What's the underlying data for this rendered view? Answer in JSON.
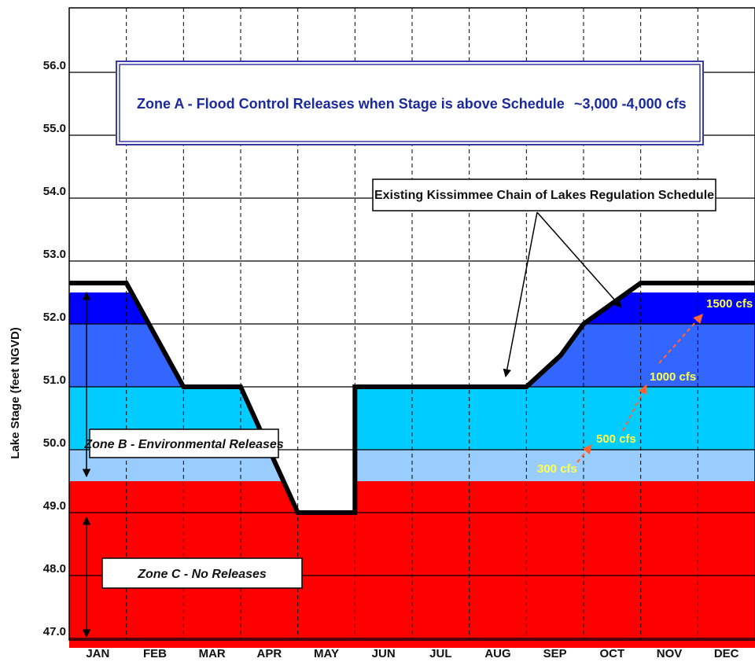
{
  "chart_data": {
    "type": "area",
    "ylabel": "Lake Stage (feet NGVD)",
    "ylim": [
      46.85,
      56.85
    ],
    "yticks": [
      "47.0",
      "48.0",
      "49.0",
      "50.0",
      "51.0",
      "52.0",
      "53.0",
      "54.0",
      "55.0",
      "56.0"
    ],
    "ytick_values": [
      47,
      48,
      49,
      50,
      51,
      52,
      53,
      54,
      55,
      56
    ],
    "categories": [
      "JAN",
      "FEB",
      "MAR",
      "APR",
      "MAY",
      "JUN",
      "JUL",
      "AUG",
      "SEP",
      "OCT",
      "NOV",
      "DEC"
    ],
    "xlim": [
      0,
      12
    ],
    "series": [
      {
        "name": "Existing Kissimmee Chain of Lakes Regulation Schedule",
        "x": [
          0,
          1,
          2,
          3,
          4,
          5,
          5,
          6,
          7,
          8,
          8.6,
          9,
          10,
          11,
          12
        ],
        "y": [
          52.65,
          52.65,
          51.0,
          51.0,
          49.0,
          49.0,
          51.0,
          51.0,
          51.0,
          51.0,
          51.5,
          52.0,
          52.65,
          52.65,
          52.65
        ]
      }
    ],
    "zones": {
      "zone_c_top": 49.5,
      "light_blue_band": [
        49.5,
        50.0
      ],
      "cyan_band_top": 51.0,
      "medium_blue_band_top": 52.0,
      "deep_blue_band_top": 52.5
    },
    "release_rates": [
      "300 cfs",
      "500 cfs",
      "1000 cfs",
      "1500 cfs"
    ],
    "zone_a_label": "Zone A - Flood Control Releases when Stage is above Schedule",
    "zone_a_rate": "~3,000 -4,000 cfs",
    "zone_b_label": "Zone B - Environmental Releases",
    "zone_c_label": "Zone C - No Releases",
    "schedule_label": "Existing Kissimmee Chain of Lakes Regulation Schedule",
    "grid": true,
    "colors": {
      "zone_c": "#ff0000",
      "light_blue": "#99ccff",
      "cyan": "#00ccff",
      "medium_blue": "#3366ff",
      "deep_blue": "#0000ff",
      "schedule_line": "#000000",
      "rate_text": "#ffff4d",
      "rate_arrow": "#ff6633",
      "zone_a_text": "#1a2a9c",
      "zone_a_border": "#3a3aa8"
    }
  }
}
